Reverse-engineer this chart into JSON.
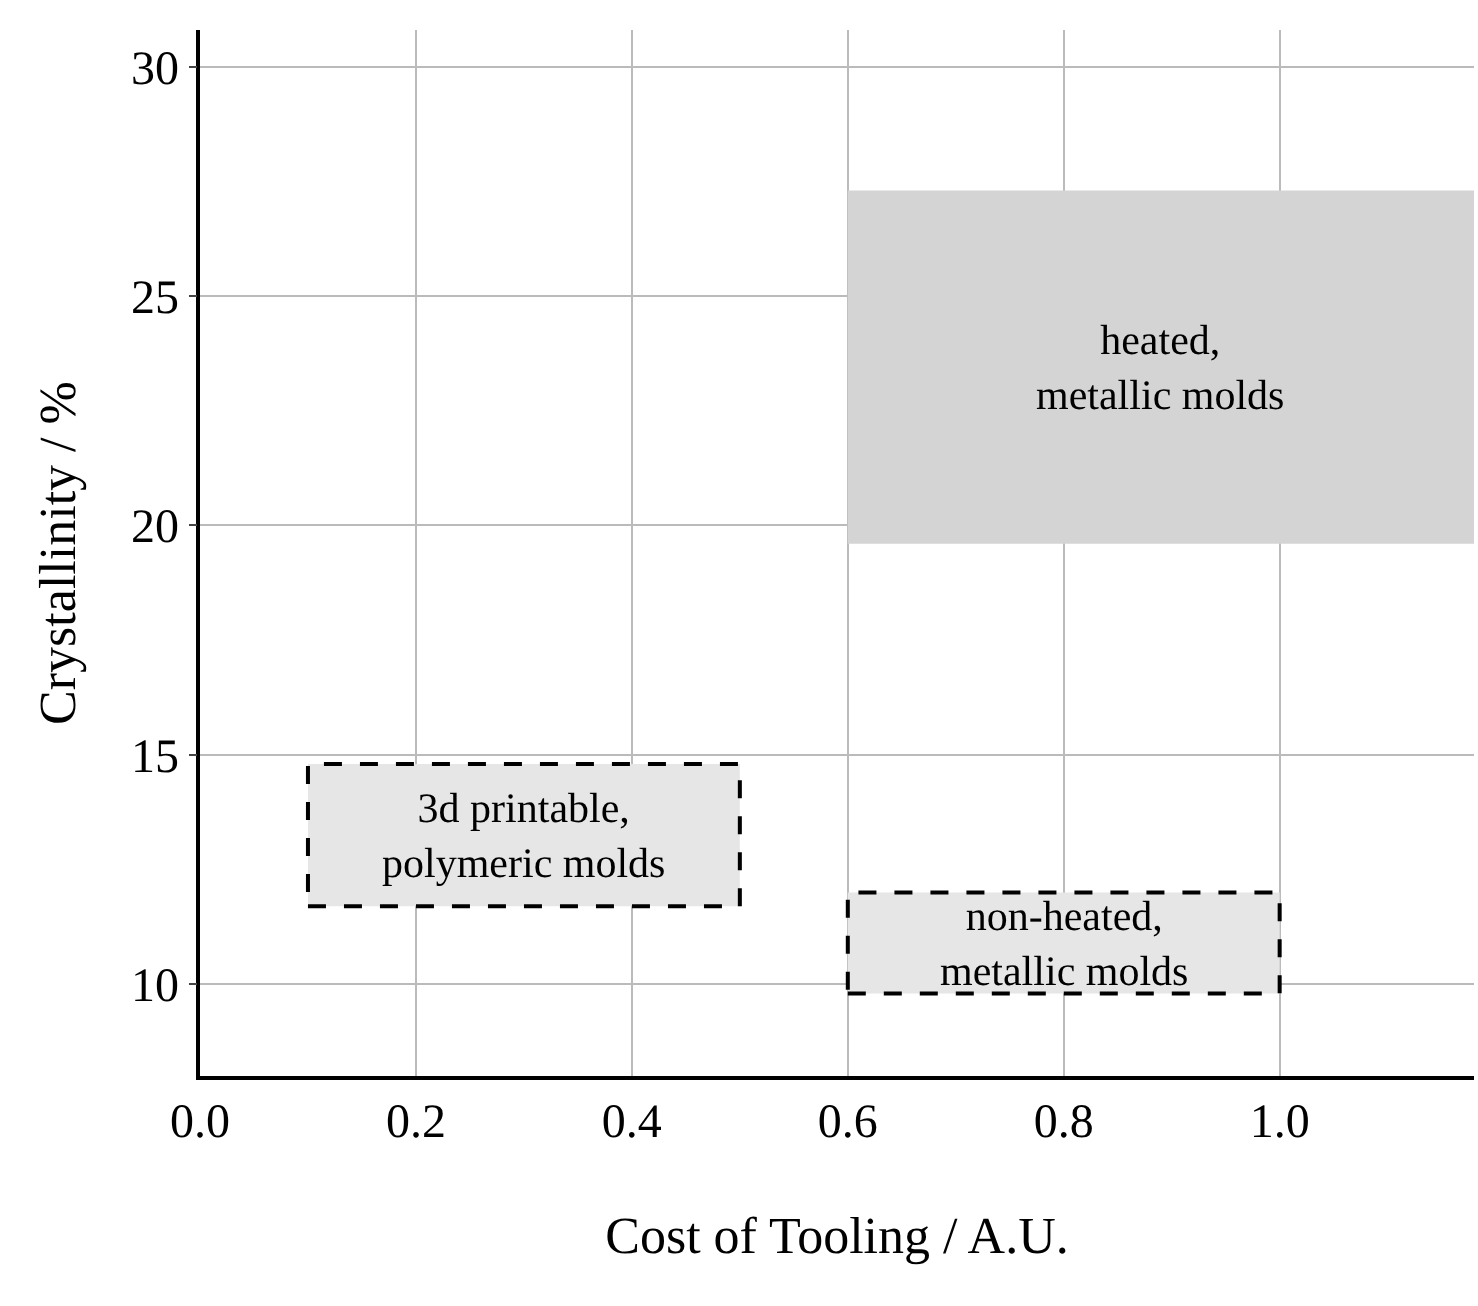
{
  "chart_data": {
    "type": "area",
    "xlabel": "Cost of Tooling / A.U.",
    "ylabel": "Crystallinity / %",
    "xlim": [
      0,
      1.18
    ],
    "ylim": [
      8,
      30.8
    ],
    "xticks": [
      {
        "value": 0,
        "label": "0.0"
      },
      {
        "value": 0.2,
        "label": "0.2"
      },
      {
        "value": 0.4,
        "label": "0.4"
      },
      {
        "value": 0.6,
        "label": "0.6"
      },
      {
        "value": 0.8,
        "label": "0.8"
      },
      {
        "value": 1,
        "label": "1.0"
      }
    ],
    "yticks": [
      10,
      15,
      20,
      25,
      30
    ],
    "grid": true,
    "marker": "none",
    "series": [
      {
        "color": "#d4d4d4",
        "x": [
          0.6,
          1.18,
          1.18,
          0.6,
          0.6
        ],
        "values": [
          19.6,
          19.6,
          27.3,
          27.3,
          19.6
        ]
      },
      {
        "color": "#e6e6e6",
        "line_style": "dashed",
        "x": [
          0.1,
          0.5,
          0.5,
          0.1,
          0.1
        ],
        "values": [
          11.7,
          11.7,
          14.8,
          14.8,
          11.7
        ]
      },
      {
        "color": "#e6e6e6",
        "line_style": "dashed",
        "x": [
          0.6,
          1.0,
          1.0,
          0.6,
          0.6
        ],
        "values": [
          9.8,
          9.8,
          12.0,
          12.0,
          9.8
        ]
      }
    ],
    "annotations": [
      "heated,\nmetallic molds",
      "3d printable,\npolymeric molds",
      "non-heated,\nmetallic molds"
    ]
  }
}
